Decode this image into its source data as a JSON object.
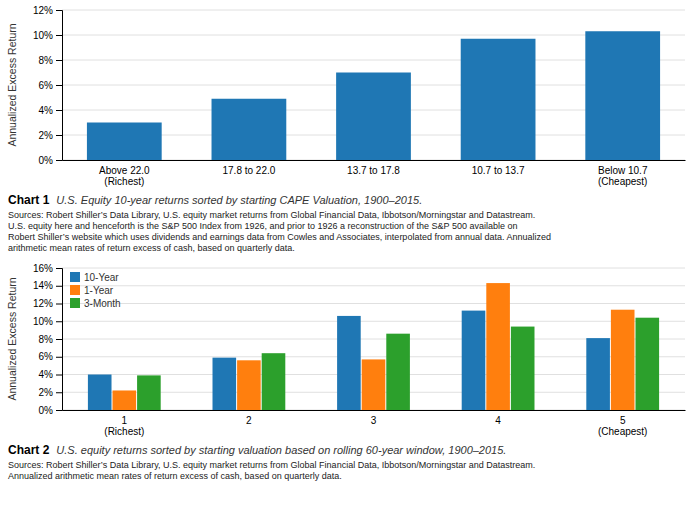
{
  "chart_data": [
    {
      "type": "bar",
      "title": "Chart 1",
      "subtitle": "U.S. Equity 10-year returns sorted by starting CAPE Valuation, 1900–2015.",
      "annotations": [
        "Sources: Robert Shiller’s Data Library, U.S. equity market returns from Global Financial Data, Ibbotson/Morningstar and Datastream.\nU.S. equity here and henceforth is the S&P 500 Index from 1926, and prior to 1926 a reconstruction of the S&P 500 available on\nRobert Shiller’s website which uses dividends and earnings data from Cowles and Associates, interpolated from annual data. Annualized\narithmetic mean rates of return excess of cash, based on quarterly data."
      ],
      "ylabel": "Annualized Excess Return",
      "categories": [
        "Above 22.0\n(Richest)",
        "17.8 to 22.0",
        "13.7 to 17.8",
        "10.7 to 13.7",
        "Below 10.7\n(Cheapest)"
      ],
      "values": [
        0.03,
        0.049,
        0.07,
        0.097,
        0.103
      ],
      "ylim": [
        0,
        0.12
      ],
      "yticks": [
        {
          "value": 0,
          "label": "0%"
        },
        {
          "value": 0.02,
          "label": "2%"
        },
        {
          "value": 0.04,
          "label": "4%"
        },
        {
          "value": 0.06,
          "label": "6%"
        },
        {
          "value": 0.08,
          "label": "8%"
        },
        {
          "value": 0.1,
          "label": "10%"
        },
        {
          "value": 0.12,
          "label": "12%"
        }
      ],
      "grid": true
    },
    {
      "type": "bar",
      "title": "Chart 2",
      "subtitle": "U.S. equity returns sorted by starting valuation based on rolling 60-year window, 1900–2015.",
      "annotations": [
        "Sources: Robert Shiller’s Data Library, U.S. equity market returns from Global Financial Data, Ibbotson/Morningstar and Datastream.\nAnnualized arithmetic mean rates of return excess of cash, based on quarterly data."
      ],
      "ylabel": "Annualized Excess Return",
      "categories": [
        "1\n(Richest)",
        "2",
        "3",
        "4",
        "5\n(Cheapest)"
      ],
      "series": [
        {
          "name": "10-Year",
          "values": [
            0.04,
            0.059,
            0.106,
            0.112,
            0.081
          ]
        },
        {
          "name": "1-Year",
          "values": [
            0.022,
            0.056,
            0.057,
            0.143,
            0.113
          ]
        },
        {
          "name": "3-Month",
          "values": [
            0.039,
            0.064,
            0.086,
            0.094,
            0.104
          ]
        }
      ],
      "ylim": [
        0,
        0.16
      ],
      "yticks": [
        {
          "value": 0,
          "label": "0%"
        },
        {
          "value": 0.02,
          "label": "2%"
        },
        {
          "value": 0.04,
          "label": "4%"
        },
        {
          "value": 0.06,
          "label": "6%"
        },
        {
          "value": 0.08,
          "label": "8%"
        },
        {
          "value": 0.1,
          "label": "10%"
        },
        {
          "value": 0.12,
          "label": "12%"
        },
        {
          "value": 0.14,
          "label": "14%"
        },
        {
          "value": 0.16,
          "label": "16%"
        }
      ],
      "grid": true,
      "legend": "upper left"
    }
  ]
}
